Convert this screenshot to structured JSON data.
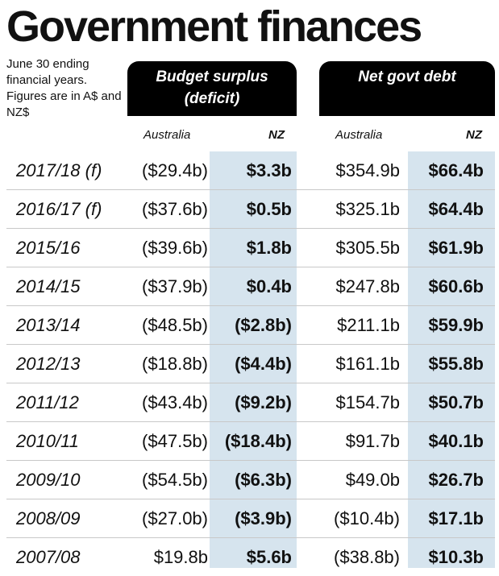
{
  "title": "Government finances",
  "note": "June 30 ending financial years. Figures are in A$ and NZ$",
  "headers": {
    "surplus": "Budget surplus (deficit)",
    "debt": "Net govt debt",
    "australia": "Australia",
    "nz": "NZ"
  },
  "colors": {
    "highlight": "#d6e4ee",
    "header_bg": "#000000"
  },
  "rows": [
    {
      "year": "2017/18 (f)",
      "surplus_aus": "($29.4b)",
      "surplus_nz": "$3.3b",
      "debt_aus": "$354.9b",
      "debt_nz": "$66.4b"
    },
    {
      "year": "2016/17 (f)",
      "surplus_aus": "($37.6b)",
      "surplus_nz": "$0.5b",
      "debt_aus": "$325.1b",
      "debt_nz": "$64.4b"
    },
    {
      "year": "2015/16",
      "surplus_aus": "($39.6b)",
      "surplus_nz": "$1.8b",
      "debt_aus": "$305.5b",
      "debt_nz": "$61.9b"
    },
    {
      "year": "2014/15",
      "surplus_aus": "($37.9b)",
      "surplus_nz": "$0.4b",
      "debt_aus": "$247.8b",
      "debt_nz": "$60.6b"
    },
    {
      "year": "2013/14",
      "surplus_aus": "($48.5b)",
      "surplus_nz": "($2.8b)",
      "debt_aus": "$211.1b",
      "debt_nz": "$59.9b"
    },
    {
      "year": "2012/13",
      "surplus_aus": "($18.8b)",
      "surplus_nz": "($4.4b)",
      "debt_aus": "$161.1b",
      "debt_nz": "$55.8b"
    },
    {
      "year": "2011/12",
      "surplus_aus": "($43.4b)",
      "surplus_nz": "($9.2b)",
      "debt_aus": "$154.7b",
      "debt_nz": "$50.7b"
    },
    {
      "year": "2010/11",
      "surplus_aus": "($47.5b)",
      "surplus_nz": "($18.4b)",
      "debt_aus": "$91.7b",
      "debt_nz": "$40.1b"
    },
    {
      "year": "2009/10",
      "surplus_aus": "($54.5b)",
      "surplus_nz": "($6.3b)",
      "debt_aus": "$49.0b",
      "debt_nz": "$26.7b"
    },
    {
      "year": "2008/09",
      "surplus_aus": "($27.0b)",
      "surplus_nz": "($3.9b)",
      "debt_aus": "($10.4b)",
      "debt_nz": "$17.1b"
    },
    {
      "year": "2007/08",
      "surplus_aus": "$19.8b",
      "surplus_nz": "$5.6b",
      "debt_aus": "($38.8b)",
      "debt_nz": "$10.3b"
    }
  ],
  "chart_data": {
    "type": "table",
    "title": "Government finances",
    "columns": [
      "",
      "Budget surplus (deficit) Australia",
      "Budget surplus (deficit) NZ",
      "Net govt debt Australia",
      "Net govt debt NZ"
    ],
    "rows": [
      [
        "2017/18 (f)",
        "($29.4b)",
        "$3.3b",
        "$354.9b",
        "$66.4b"
      ],
      [
        "2016/17 (f)",
        "($37.6b)",
        "$0.5b",
        "$325.1b",
        "$64.4b"
      ],
      [
        "2015/16",
        "($39.6b)",
        "$1.8b",
        "$305.5b",
        "$61.9b"
      ],
      [
        "2014/15",
        "($37.9b)",
        "$0.4b",
        "$247.8b",
        "$60.6b"
      ],
      [
        "2013/14",
        "($48.5b)",
        "($2.8b)",
        "$211.1b",
        "$59.9b"
      ],
      [
        "2012/13",
        "($18.8b)",
        "($4.4b)",
        "$161.1b",
        "$55.8b"
      ],
      [
        "2011/12",
        "($43.4b)",
        "($9.2b)",
        "$154.7b",
        "$50.7b"
      ],
      [
        "2010/11",
        "($47.5b)",
        "($18.4b)",
        "$91.7b",
        "$40.1b"
      ],
      [
        "2009/10",
        "($54.5b)",
        "($6.3b)",
        "$49.0b",
        "$26.7b"
      ],
      [
        "2008/09",
        "($27.0b)",
        "($3.9b)",
        "($10.4b)",
        "$17.1b"
      ],
      [
        "2007/08",
        "$19.8b",
        "$5.6b",
        "($38.8b)",
        "$10.3b"
      ]
    ]
  }
}
